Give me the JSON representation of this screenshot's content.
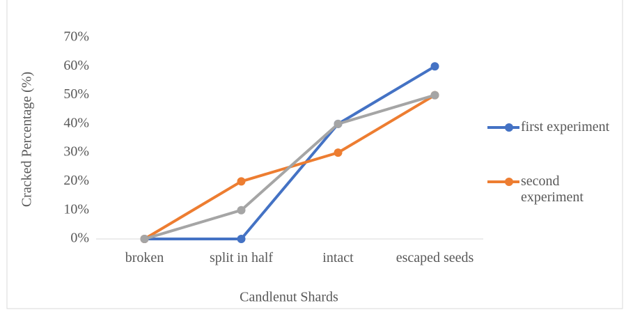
{
  "chart_data": {
    "type": "line",
    "x_label": "Candlenut Shards",
    "y_label": "Cracked Percentage (%)",
    "categories": [
      "broken",
      "split in half",
      "intact",
      "escaped seeds"
    ],
    "series": [
      {
        "name": "first experiment",
        "color": "#4472c4",
        "values": [
          0,
          0,
          40,
          60
        ]
      },
      {
        "name": "second experiment",
        "color": "#ed7d31",
        "values": [
          0,
          20,
          30,
          50
        ]
      },
      {
        "color": "#a5a5a5",
        "values": [
          0,
          10,
          40,
          50
        ]
      }
    ],
    "ylim": [
      0,
      70
    ],
    "yticks": [
      {
        "value": 0,
        "label": "0%"
      },
      {
        "value": 10,
        "label": "10%"
      },
      {
        "value": 20,
        "label": "20%"
      },
      {
        "value": 30,
        "label": "30%"
      },
      {
        "value": 40,
        "label": "40%"
      },
      {
        "value": 50,
        "label": "50%"
      },
      {
        "value": 60,
        "label": "60%"
      },
      {
        "value": 70,
        "label": "70%"
      }
    ],
    "grid": false,
    "legend": "right"
  }
}
